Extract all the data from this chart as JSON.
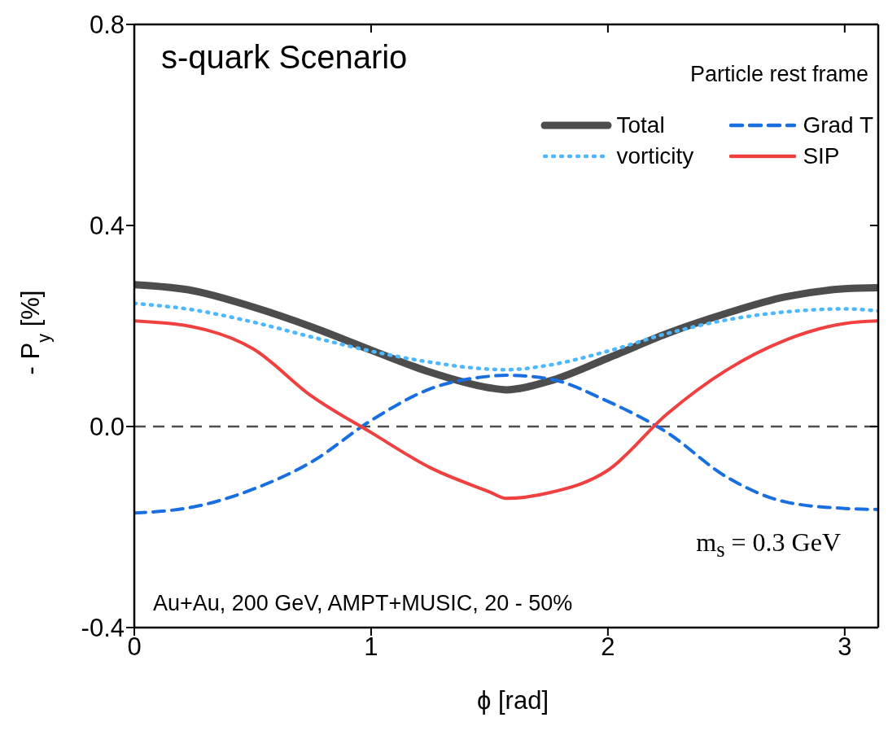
{
  "chart_data": {
    "type": "line",
    "title": "s-quark Scenario",
    "xlabel": "ϕ [rad]",
    "ylabel": "- P$_{y}$ [%]",
    "x": [
      0,
      0.25,
      0.5,
      0.75,
      1.0,
      1.25,
      1.5,
      1.571,
      1.75,
      2.0,
      2.25,
      2.5,
      2.75,
      3.0,
      3.1416
    ],
    "series": [
      {
        "name": "Total",
        "color": "#4d4d4d",
        "line_style": "solid",
        "values": [
          0.282,
          0.27,
          0.238,
          0.198,
          0.152,
          0.108,
          0.077,
          0.073,
          0.09,
          0.136,
          0.185,
          0.225,
          0.258,
          0.274,
          0.276
        ]
      },
      {
        "name": "Grad T",
        "color": "#1a6fe0",
        "line_style": "dashed",
        "values": [
          -0.172,
          -0.16,
          -0.125,
          -0.07,
          0.012,
          0.075,
          0.1,
          0.102,
          0.095,
          0.05,
          -0.012,
          -0.1,
          -0.15,
          -0.163,
          -0.165
        ]
      },
      {
        "name": "vorticity",
        "color": "#4db8ff",
        "line_style": "dotted",
        "values": [
          0.245,
          0.232,
          0.208,
          0.178,
          0.15,
          0.128,
          0.114,
          0.113,
          0.122,
          0.15,
          0.185,
          0.212,
          0.228,
          0.234,
          0.23
        ]
      },
      {
        "name": "SIP",
        "color": "#f04040",
        "line_style": "solid",
        "values": [
          0.21,
          0.198,
          0.155,
          0.06,
          -0.012,
          -0.082,
          -0.13,
          -0.143,
          -0.132,
          -0.087,
          0.025,
          0.112,
          0.172,
          0.205,
          0.21
        ]
      }
    ],
    "xlim": [
      0,
      3.1416
    ],
    "xticks": [
      0,
      1,
      2,
      3
    ],
    "ylim": [
      -0.4,
      0.8
    ],
    "yticks": [
      {
        "value": -0.4,
        "label": "-0.4"
      },
      {
        "value": 0,
        "label": "0.0"
      },
      {
        "value": 0.4,
        "label": "0.4"
      },
      {
        "value": 0.8,
        "label": "0.8"
      }
    ],
    "ref_lines": [
      {
        "axis": "y",
        "value": 0,
        "color": "#4d4d4d",
        "line_style": "dashed"
      }
    ],
    "annotations": [
      "Particle rest frame",
      "m$_{s}$ = 0.3 GeV",
      "Au+Au, 200 GeV, AMPT+MUSIC, 20 - 50%"
    ],
    "grid": false,
    "legend": "top right",
    "marker": "none"
  }
}
